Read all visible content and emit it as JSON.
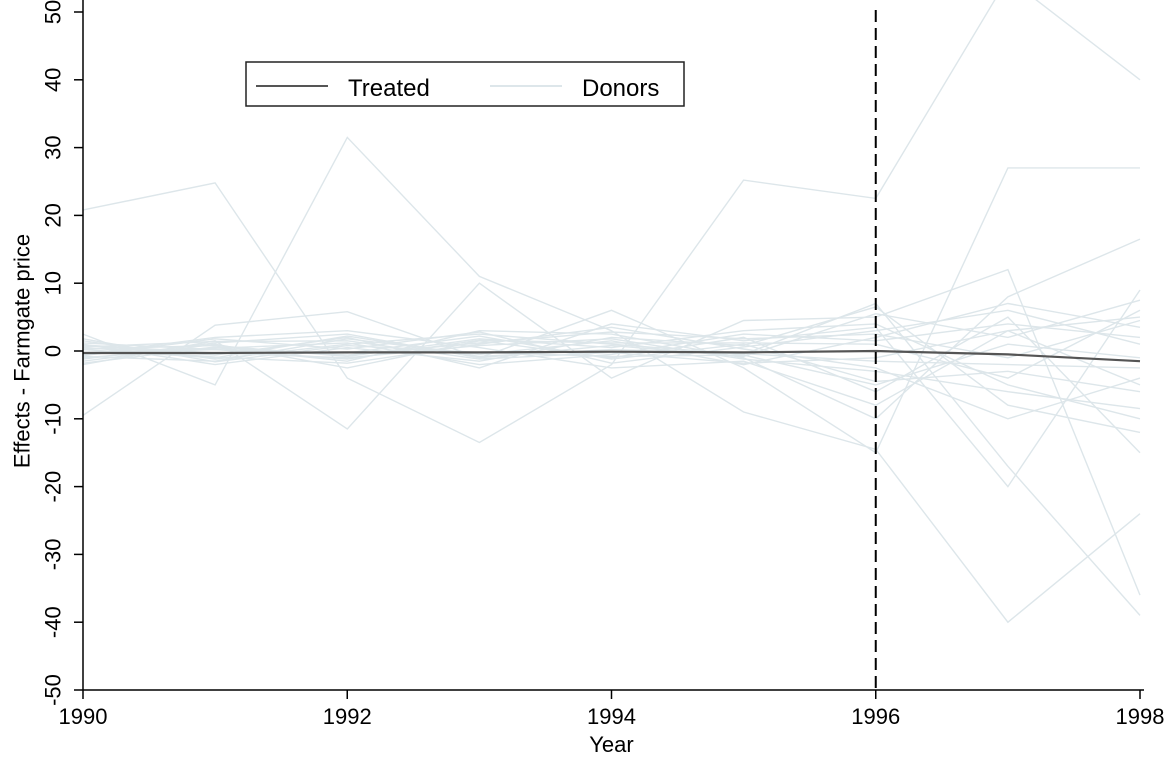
{
  "chart_data": {
    "type": "line",
    "title": "",
    "xlabel": "Year",
    "ylabel": "Effects - Farmgate price",
    "xlim": [
      1990,
      1998
    ],
    "ylim": [
      -50,
      50
    ],
    "x_ticks": [
      1990,
      1992,
      1994,
      1996,
      1998
    ],
    "y_ticks": [
      -50,
      -40,
      -30,
      -20,
      -10,
      0,
      10,
      20,
      30,
      40,
      50
    ],
    "x": [
      1990,
      1991,
      1992,
      1993,
      1994,
      1995,
      1996,
      1997,
      1998
    ],
    "grid": false,
    "legend_position": "top-left",
    "treatment_year": 1996,
    "series": [
      {
        "name": "Treated",
        "role": "treated",
        "values": [
          -0.3,
          -0.3,
          -0.2,
          -0.2,
          -0.1,
          -0.2,
          0.0,
          -0.5,
          -1.5
        ]
      },
      {
        "name": "Donors",
        "role": "donor",
        "values": [
          20.8,
          24.8,
          -4.0,
          -13.5,
          -2.0,
          25.2,
          22.5,
          55.0,
          40.0
        ]
      },
      {
        "role": "donor",
        "values": [
          -9.5,
          3.8,
          5.8,
          -1.0,
          6.0,
          -2.5,
          -15.0,
          27.0,
          27.0
        ]
      },
      {
        "role": "donor",
        "values": [
          2.5,
          -5.0,
          31.5,
          11.0,
          3.0,
          -9.0,
          -14.5,
          -40.0,
          -24.0
        ]
      },
      {
        "role": "donor",
        "values": [
          -2.0,
          1.5,
          -11.5,
          10.0,
          -4.0,
          4.5,
          5.0,
          12.0,
          -36.0
        ]
      },
      {
        "role": "donor",
        "values": [
          1.5,
          -1.2,
          1.0,
          2.5,
          1.0,
          -0.5,
          7.0,
          -17.0,
          -39.0
        ]
      },
      {
        "role": "donor",
        "values": [
          -1.0,
          0.5,
          -1.5,
          3.0,
          2.5,
          -1.0,
          -10.0,
          8.0,
          16.5
        ]
      },
      {
        "role": "donor",
        "values": [
          0.8,
          -0.6,
          2.0,
          -2.5,
          4.0,
          1.5,
          3.5,
          -20.0,
          9.0
        ]
      },
      {
        "role": "donor",
        "values": [
          -1.5,
          1.0,
          -2.5,
          1.5,
          -1.0,
          2.0,
          -6.0,
          5.0,
          -15.0
        ]
      },
      {
        "role": "donor",
        "values": [
          1.0,
          -2.0,
          0.5,
          -1.5,
          2.0,
          0.8,
          6.5,
          -8.0,
          -12.0
        ]
      },
      {
        "role": "donor",
        "values": [
          -0.5,
          2.0,
          3.0,
          0.5,
          -2.5,
          -1.5,
          -8.0,
          3.0,
          5.0
        ]
      },
      {
        "role": "donor",
        "values": [
          0.3,
          0.8,
          -0.8,
          1.8,
          0.5,
          3.0,
          4.0,
          -5.0,
          -10.0
        ]
      },
      {
        "role": "donor",
        "values": [
          -0.8,
          -1.5,
          1.8,
          -0.5,
          1.5,
          -2.0,
          2.0,
          7.0,
          3.5
        ]
      },
      {
        "role": "donor",
        "values": [
          1.2,
          0.2,
          -0.3,
          2.2,
          -1.2,
          1.0,
          -4.5,
          -3.0,
          -6.0
        ]
      },
      {
        "role": "donor",
        "values": [
          -1.2,
          1.2,
          2.5,
          -1.0,
          0.8,
          -0.8,
          5.5,
          2.0,
          7.5
        ]
      },
      {
        "role": "donor",
        "values": [
          0.5,
          -0.9,
          -1.8,
          1.0,
          3.5,
          0.3,
          -2.5,
          -10.0,
          -4.0
        ]
      },
      {
        "role": "donor",
        "values": [
          -0.2,
          0.4,
          1.2,
          -2.0,
          -0.5,
          2.5,
          1.5,
          4.0,
          2.0
        ]
      },
      {
        "role": "donor",
        "values": [
          0.9,
          -0.3,
          -1.0,
          0.8,
          1.8,
          -1.2,
          -3.0,
          -6.0,
          -8.5
        ]
      },
      {
        "role": "donor",
        "values": [
          -0.7,
          1.8,
          0.3,
          2.8,
          -1.8,
          0.6,
          3.0,
          6.0,
          1.0
        ]
      },
      {
        "role": "donor",
        "values": [
          0.2,
          -1.0,
          2.2,
          -0.8,
          0.2,
          -0.4,
          -1.5,
          -2.0,
          -2.5
        ]
      },
      {
        "role": "donor",
        "values": [
          -1.8,
          0.6,
          -0.6,
          1.2,
          2.8,
          1.8,
          2.5,
          -1.0,
          4.5
        ]
      },
      {
        "role": "donor",
        "values": [
          1.8,
          -1.6,
          0.8,
          -0.2,
          -0.8,
          -0.6,
          -5.0,
          1.0,
          -1.0
        ]
      },
      {
        "role": "donor",
        "values": [
          -0.4,
          0.2,
          -1.2,
          1.6,
          1.2,
          1.2,
          1.0,
          -4.0,
          6.0
        ]
      },
      {
        "role": "donor",
        "values": [
          0.6,
          1.4,
          1.5,
          -1.2,
          -0.2,
          -1.8,
          -1.0,
          3.0,
          -5.0
        ]
      }
    ]
  },
  "colors": {
    "treated": "#555555",
    "donor": "#dde6ea",
    "axis": "#000000",
    "vline": "#000000"
  }
}
